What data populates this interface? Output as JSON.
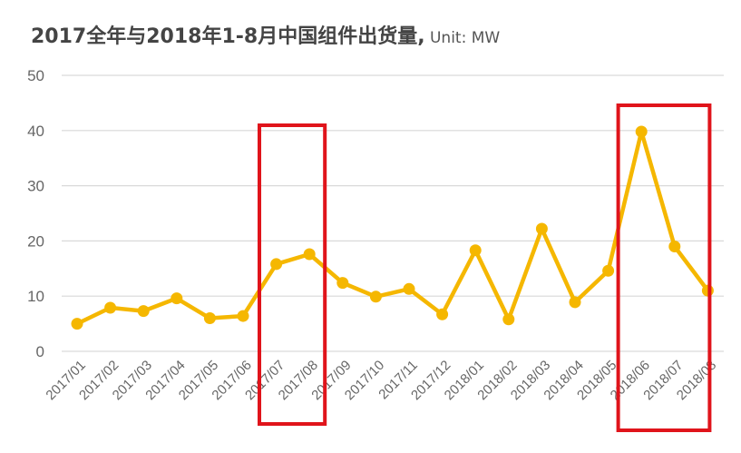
{
  "title": {
    "main": "2017全年与2018年1-8月中国组件出货量,",
    "unit": " Unit: MW"
  },
  "chart_data": {
    "type": "line",
    "title": "2017全年与2018年1-8月中国组件出货量, Unit: MW",
    "xlabel": "",
    "ylabel": "",
    "ylim": [
      0,
      50
    ],
    "yticks": [
      0,
      10,
      20,
      30,
      40,
      50
    ],
    "grid": true,
    "categories": [
      "2017/01",
      "2017/02",
      "2017/03",
      "2017/04",
      "2017/05",
      "2017/06",
      "2017/07",
      "2017/08",
      "2017/09",
      "2017/10",
      "2017/11",
      "2017/12",
      "2018/01",
      "2018/02",
      "2018/03",
      "2018/04",
      "2018/05",
      "2018/06",
      "2018/07",
      "2018/08"
    ],
    "series": [
      {
        "values": [
          5.0,
          7.9,
          7.3,
          9.6,
          6.0,
          6.4,
          15.8,
          17.6,
          12.4,
          9.9,
          11.3,
          6.7,
          18.3,
          5.8,
          22.2,
          8.9,
          14.6,
          39.8,
          19.0,
          11.0
        ],
        "color": "#F5B700"
      }
    ],
    "highlights": [
      {
        "from": "2017/06",
        "to": "2017/08",
        "color": "#E0141B"
      },
      {
        "from": "2018/05",
        "to": "2018/08",
        "color": "#E0141B"
      }
    ],
    "gridColor": "#d9d9d9"
  }
}
